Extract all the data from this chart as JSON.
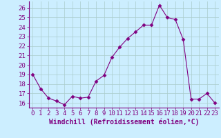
{
  "x": [
    0,
    1,
    2,
    3,
    4,
    5,
    6,
    7,
    8,
    9,
    10,
    11,
    12,
    13,
    14,
    15,
    16,
    17,
    18,
    19,
    20,
    21,
    22,
    23
  ],
  "y": [
    19.0,
    17.5,
    16.5,
    16.2,
    15.8,
    16.7,
    16.5,
    16.6,
    18.3,
    18.9,
    20.8,
    21.9,
    22.8,
    23.5,
    24.2,
    24.2,
    26.3,
    25.0,
    24.8,
    22.7,
    16.4,
    16.4,
    17.0,
    16.0
  ],
  "line_color": "#800080",
  "marker": "D",
  "marker_size": 2.5,
  "bg_color": "#cceeff",
  "grid_color": "#aacccc",
  "xlabel": "Windchill (Refroidissement éolien,°C)",
  "ylim": [
    15.5,
    26.7
  ],
  "yticks": [
    16,
    17,
    18,
    19,
    20,
    21,
    22,
    23,
    24,
    25,
    26
  ],
  "xlim": [
    -0.5,
    23.5
  ],
  "xticks": [
    0,
    1,
    2,
    3,
    4,
    5,
    6,
    7,
    8,
    9,
    10,
    11,
    12,
    13,
    14,
    15,
    16,
    17,
    18,
    19,
    20,
    21,
    22,
    23
  ],
  "font_color": "#800080",
  "font_size": 6.5,
  "xlabel_font_size": 7.0
}
